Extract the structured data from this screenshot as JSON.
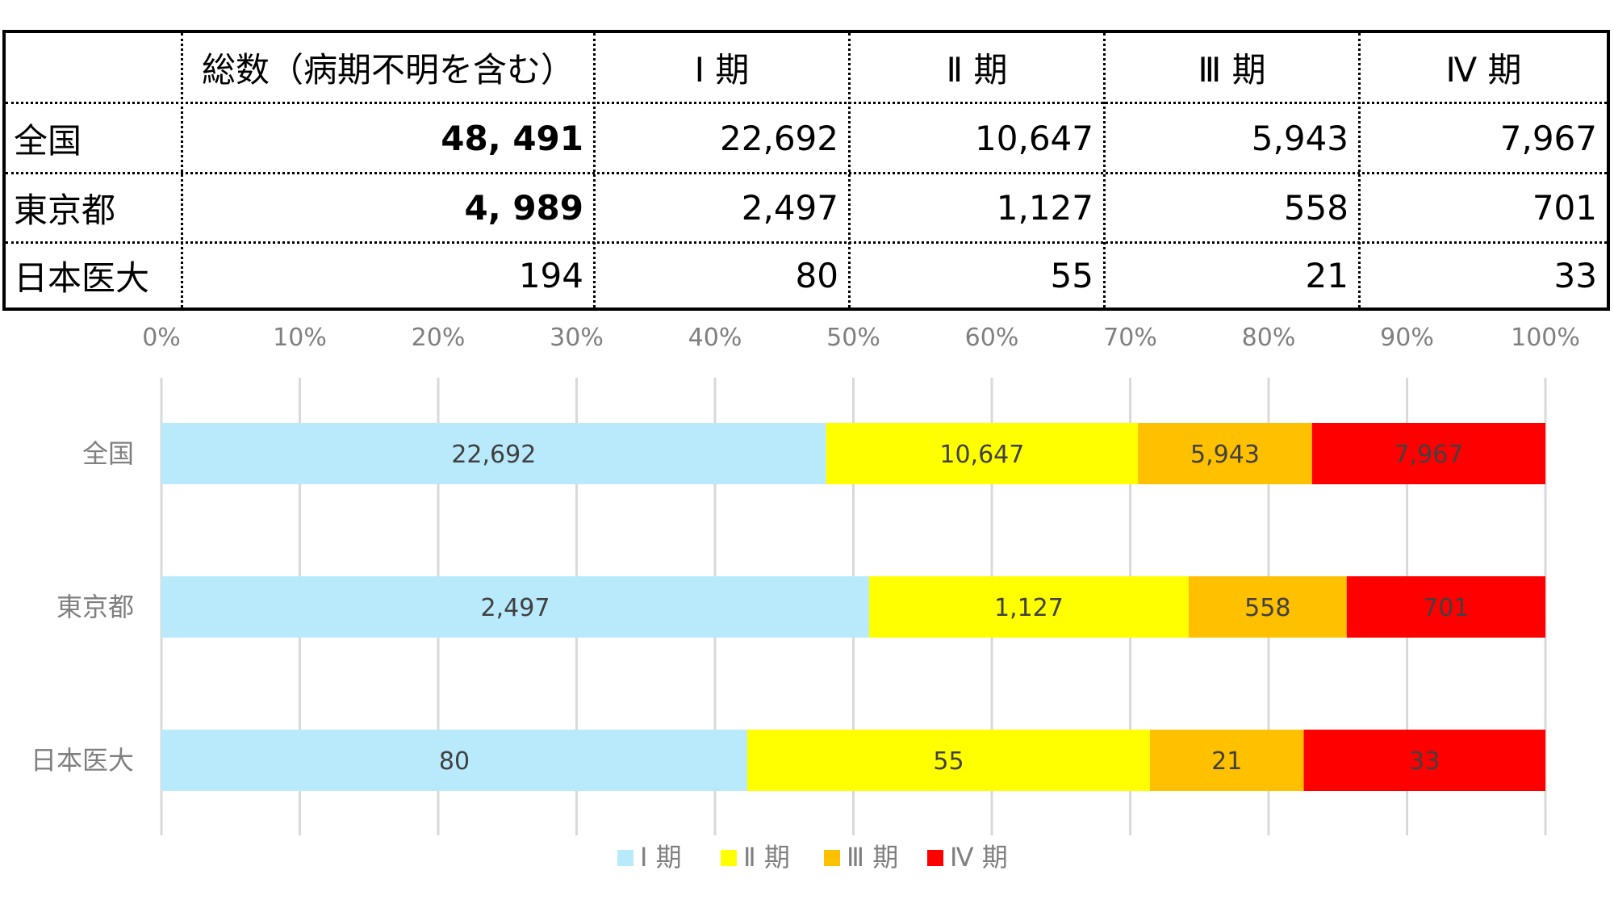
{
  "table": {
    "headers": [
      "",
      "総数（病期不明を含む）",
      "Ⅰ 期",
      "Ⅱ 期",
      "Ⅲ 期",
      "Ⅳ 期"
    ],
    "rows": [
      {
        "label": "全国",
        "total": "48, 491",
        "s1": "22,692",
        "s2": "10,647",
        "s3": "5,943",
        "s4": "7,967"
      },
      {
        "label": "東京都",
        "total": "4, 989",
        "s1": "2,497",
        "s2": "1,127",
        "s3": "558",
        "s4": "701"
      },
      {
        "label": "日本医大",
        "total": "194",
        "s1": "80",
        "s2": "55",
        "s3": "21",
        "s4": "33"
      }
    ]
  },
  "chart_data": {
    "type": "bar",
    "orientation": "horizontal",
    "stacked": "percent",
    "categories": [
      "全国",
      "東京都",
      "日本医大"
    ],
    "series": [
      {
        "name": "Ⅰ 期",
        "values": [
          22692,
          2497,
          80
        ],
        "labels": [
          "22,692",
          "2,497",
          "80"
        ],
        "color": "#b8eafb"
      },
      {
        "name": "Ⅱ 期",
        "values": [
          10647,
          1127,
          55
        ],
        "labels": [
          "10,647",
          "1,127",
          "55"
        ],
        "color": "#ffff00"
      },
      {
        "name": "Ⅲ 期",
        "values": [
          5943,
          558,
          21
        ],
        "labels": [
          "5,943",
          "558",
          "21"
        ],
        "color": "#ffc000"
      },
      {
        "name": "Ⅳ 期",
        "values": [
          7967,
          701,
          33
        ],
        "labels": [
          "7,967",
          "701",
          "33"
        ],
        "color": "#ff0000"
      }
    ],
    "xticks": [
      "0%",
      "10%",
      "20%",
      "30%",
      "40%",
      "50%",
      "60%",
      "70%",
      "80%",
      "90%",
      "100%"
    ],
    "xlim": [
      0,
      100
    ],
    "grid": true,
    "legend": "bottom",
    "colors": {
      "tick": "#7f7f7f",
      "grid": "#d9d9d9",
      "datalabel": "#404040"
    }
  }
}
